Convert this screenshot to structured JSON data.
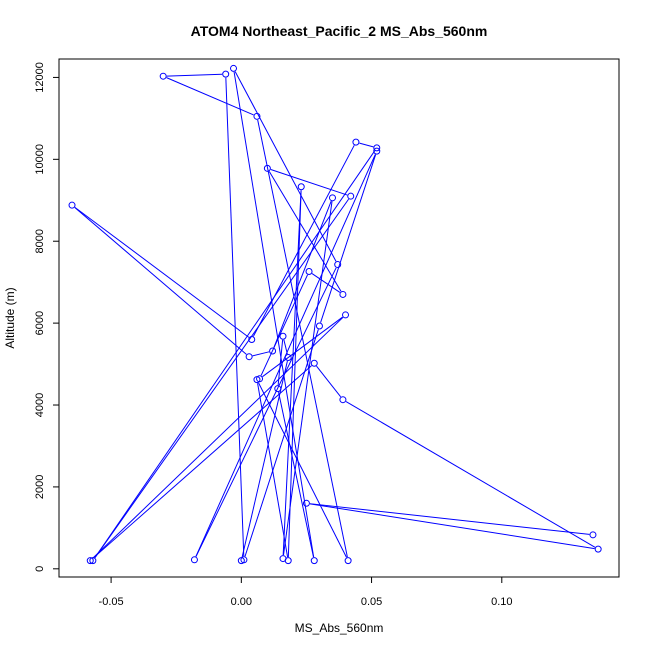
{
  "chart_data": {
    "type": "scatter",
    "title": "ATOM4 Northeast_Pacific_2 MS_Abs_560nm",
    "xlabel": "MS_Abs_560nm",
    "ylabel": "Altitude (m)",
    "xlim": [
      -0.07,
      0.145
    ],
    "ylim": [
      -200,
      12450
    ],
    "xticks": [
      -0.05,
      0.0,
      0.05,
      0.1
    ],
    "xtick_labels": [
      "-0.05",
      "0.00",
      "0.05",
      "0.10"
    ],
    "yticks": [
      0,
      2000,
      4000,
      6000,
      8000,
      10000,
      12000
    ],
    "ytick_labels": [
      "0",
      "2000",
      "4000",
      "6000",
      "8000",
      "10000",
      "12000"
    ],
    "grid": false,
    "legend": "none",
    "series_color": "#0000ff",
    "marker": "open-circle",
    "points": [
      {
        "x": 0.135,
        "y": 830
      },
      {
        "x": 0.025,
        "y": 1600
      },
      {
        "x": 0.137,
        "y": 480
      },
      {
        "x": 0.039,
        "y": 4130
      },
      {
        "x": 0.028,
        "y": 5020
      },
      {
        "x": -0.058,
        "y": 200
      },
      {
        "x": 0.04,
        "y": 6200
      },
      {
        "x": 0.007,
        "y": 4640
      },
      {
        "x": 0.026,
        "y": 7260
      },
      {
        "x": 0.039,
        "y": 6700
      },
      {
        "x": 0.01,
        "y": 9780
      },
      {
        "x": 0.042,
        "y": 9100
      },
      {
        "x": -0.057,
        "y": 200
      },
      {
        "x": 0.052,
        "y": 10280
      },
      {
        "x": 0.044,
        "y": 10420
      },
      {
        "x": 0.004,
        "y": 5600
      },
      {
        "x": -0.065,
        "y": 8880
      },
      {
        "x": 0.003,
        "y": 5180
      },
      {
        "x": 0.012,
        "y": 5320
      },
      {
        "x": 0.035,
        "y": 9060
      },
      {
        "x": 0.016,
        "y": 250
      },
      {
        "x": 0.023,
        "y": 9330
      },
      {
        "x": 0.018,
        "y": 200
      },
      {
        "x": 0.006,
        "y": 4620
      },
      {
        "x": 0.041,
        "y": 200
      },
      {
        "x": 0.006,
        "y": 11050
      },
      {
        "x": -0.03,
        "y": 12030
      },
      {
        "x": -0.006,
        "y": 12080
      },
      {
        "x": 0.001,
        "y": 220
      },
      {
        "x": 0.03,
        "y": 5930
      },
      {
        "x": 0.052,
        "y": 10200
      },
      {
        "x": -0.018,
        "y": 220
      },
      {
        "x": 0.037,
        "y": 7430
      },
      {
        "x": -0.003,
        "y": 12220
      },
      {
        "x": 0.028,
        "y": 200
      },
      {
        "x": 0.014,
        "y": 4400
      },
      {
        "x": 0.016,
        "y": 5680
      },
      {
        "x": 0.018,
        "y": 5160
      },
      {
        "x": 0.0,
        "y": 200
      }
    ]
  }
}
